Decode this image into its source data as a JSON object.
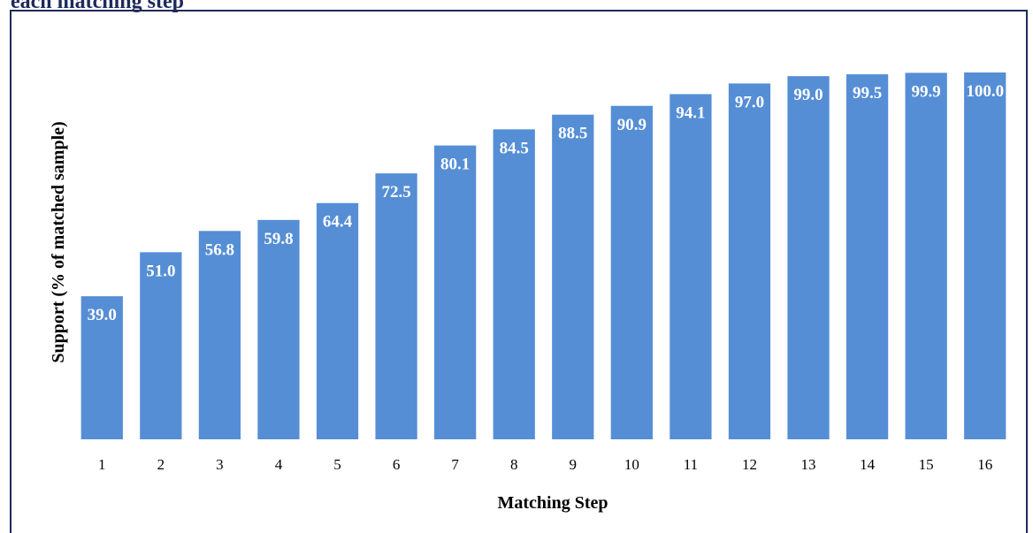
{
  "title_fragment": "each matching step",
  "colors": {
    "bar": "#558ed5",
    "title": "#1f2a5a",
    "frame": "#1f2a5a"
  },
  "chart_data": {
    "type": "bar",
    "categories": [
      "1",
      "2",
      "3",
      "4",
      "5",
      "6",
      "7",
      "8",
      "9",
      "10",
      "11",
      "12",
      "13",
      "14",
      "15",
      "16"
    ],
    "values": [
      39.0,
      51.0,
      56.8,
      59.8,
      64.4,
      72.5,
      80.1,
      84.5,
      88.5,
      90.9,
      94.1,
      97.0,
      99.0,
      99.5,
      99.9,
      100.0
    ],
    "data_labels": [
      "39.0",
      "51.0",
      "56.8",
      "59.8",
      "64.4",
      "72.5",
      "80.1",
      "84.5",
      "88.5",
      "90.9",
      "94.1",
      "97.0",
      "99.0",
      "99.5",
      "99.9",
      "100.0"
    ],
    "xlabel": "Matching Step",
    "ylabel": "Support (% of matched sample)",
    "ylim": [
      0,
      100
    ],
    "grid": false,
    "legend": "none"
  }
}
